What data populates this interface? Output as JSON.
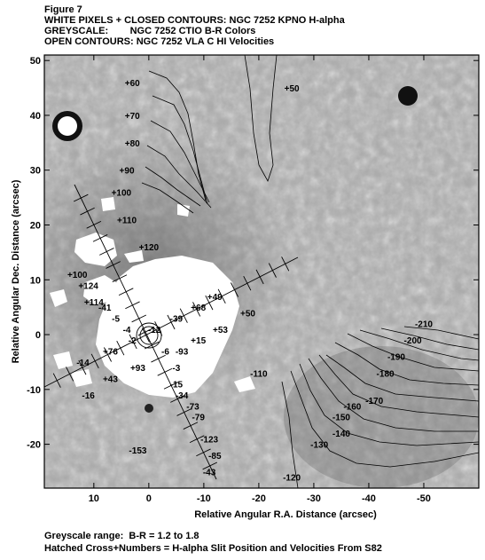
{
  "header": {
    "figure": "Figure 7",
    "line1": "WHITE PIXELS + CLOSED CONTOURS: NGC 7252 KPNO H-alpha",
    "line2": "GREYSCALE:        NGC 7252 CTIO B-R Colors",
    "line3": "OPEN CONTOURS: NGC 7252 VLA C HI Velocities"
  },
  "footer": {
    "line1": "Greyscale range:  B-R = 1.2 to 1.8",
    "line2": "Hatched Cross+Numbers = H-alpha Slit Position and Velocities From S82"
  },
  "chart_data": {
    "type": "contour",
    "xlabel": "Relative Angular R.A. Distance (arcsec)",
    "ylabel": "Relative Angular Dec. Distance (arcsec)",
    "xlim": [
      19,
      -60
    ],
    "ylim": [
      -28,
      51
    ],
    "xticks": [
      10,
      0,
      -10,
      -20,
      -30,
      -40,
      -50
    ],
    "yticks": [
      50,
      40,
      30,
      20,
      10,
      0,
      -10,
      -20
    ],
    "hi_velocity_labels": [
      {
        "text": "+60",
        "x": 3,
        "y": 46
      },
      {
        "text": "+50",
        "x": -26,
        "y": 45
      },
      {
        "text": "+70",
        "x": 3,
        "y": 40
      },
      {
        "text": "+80",
        "x": 3,
        "y": 35
      },
      {
        "text": "+90",
        "x": 4,
        "y": 30
      },
      {
        "text": "+100",
        "x": 5,
        "y": 26
      },
      {
        "text": "+110",
        "x": 4,
        "y": 21
      },
      {
        "text": "+120",
        "x": 0,
        "y": 16
      },
      {
        "text": "-110",
        "x": -20,
        "y": -7
      },
      {
        "text": "-120",
        "x": -26,
        "y": -26
      },
      {
        "text": "-130",
        "x": -31,
        "y": -20
      },
      {
        "text": "-140",
        "x": -35,
        "y": -18
      },
      {
        "text": "-150",
        "x": -35,
        "y": -15
      },
      {
        "text": "-160",
        "x": -37,
        "y": -13
      },
      {
        "text": "-170",
        "x": -41,
        "y": -12
      },
      {
        "text": "-180",
        "x": -43,
        "y": -7
      },
      {
        "text": "-190",
        "x": -45,
        "y": -4
      },
      {
        "text": "-200",
        "x": -48,
        "y": -1
      },
      {
        "text": "-210",
        "x": -50,
        "y": 2
      }
    ],
    "halpha_velocity_labels": [
      {
        "text": "+100",
        "x": 13,
        "y": 11
      },
      {
        "text": "+124",
        "x": 11,
        "y": 9
      },
      {
        "text": "+114",
        "x": 10,
        "y": 6
      },
      {
        "text": "-41",
        "x": 8,
        "y": 5
      },
      {
        "text": "-5",
        "x": 6,
        "y": 3
      },
      {
        "text": "-4",
        "x": 4,
        "y": 1
      },
      {
        "text": "-2",
        "x": 3,
        "y": -1
      },
      {
        "text": "+76",
        "x": 7,
        "y": -3
      },
      {
        "text": "-14",
        "x": 12,
        "y": -5
      },
      {
        "text": "+43",
        "x": 7,
        "y": -8
      },
      {
        "text": "-16",
        "x": 11,
        "y": -11
      },
      {
        "text": "+93",
        "x": 2,
        "y": -6
      },
      {
        "text": "-12",
        "x": -1,
        "y": 1
      },
      {
        "text": "-39",
        "x": -5,
        "y": 3
      },
      {
        "text": "+68",
        "x": -9,
        "y": 5
      },
      {
        "text": "+49",
        "x": -12,
        "y": 7
      },
      {
        "text": "+50",
        "x": -18,
        "y": 4
      },
      {
        "text": "+53",
        "x": -13,
        "y": 1
      },
      {
        "text": "+15",
        "x": -9,
        "y": -1
      },
      {
        "text": "-93",
        "x": -6,
        "y": -3
      },
      {
        "text": "-6",
        "x": -3,
        "y": -3
      },
      {
        "text": "-3",
        "x": -5,
        "y": -6
      },
      {
        "text": "-15",
        "x": -5,
        "y": -9
      },
      {
        "text": "-34",
        "x": -6,
        "y": -11
      },
      {
        "text": "-73",
        "x": -8,
        "y": -13
      },
      {
        "text": "-79",
        "x": -9,
        "y": -15
      },
      {
        "text": "-123",
        "x": -11,
        "y": -19
      },
      {
        "text": "-153",
        "x": 2,
        "y": -21
      },
      {
        "text": "-85",
        "x": -12,
        "y": -22
      },
      {
        "text": "-43",
        "x": -11,
        "y": -25
      }
    ]
  }
}
